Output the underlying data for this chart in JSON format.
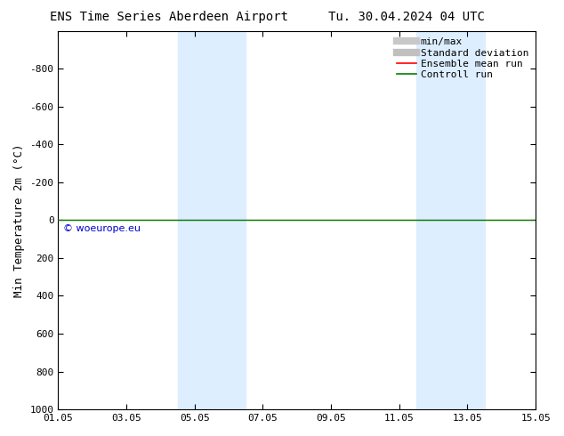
{
  "title": "ENS Time Series Aberdeen Airport",
  "title2": "Tu. 30.04.2024 04 UTC",
  "ylabel": "Min Temperature 2m (°C)",
  "ylim_top": -1000,
  "ylim_bottom": 1000,
  "yticks": [
    -800,
    -600,
    -400,
    -200,
    0,
    200,
    400,
    600,
    800,
    1000
  ],
  "xtick_labels": [
    "01.05",
    "03.05",
    "05.05",
    "07.05",
    "09.05",
    "11.05",
    "13.05",
    "15.05"
  ],
  "xtick_positions": [
    0,
    2,
    4,
    6,
    8,
    10,
    12,
    14
  ],
  "xlim": [
    0,
    14
  ],
  "bg_color": "#ffffff",
  "plot_bg_color": "#ffffff",
  "shade_bands": [
    {
      "start": 3.5,
      "end": 5.5,
      "color": "#ddeeff"
    },
    {
      "start": 10.5,
      "end": 12.5,
      "color": "#ddeeff"
    }
  ],
  "control_run_y": 0.0,
  "control_run_color": "#008000",
  "ensemble_mean_color": "#ff0000",
  "watermark": "© woeurope.eu",
  "watermark_color": "#0000cc",
  "legend_entries": [
    "min/max",
    "Standard deviation",
    "Ensemble mean run",
    "Controll run"
  ],
  "legend_line_colors": [
    "#c8c8c8",
    "#c0c0c0",
    "#ff0000",
    "#008000"
  ],
  "title_fontsize": 10,
  "axis_fontsize": 9,
  "tick_fontsize": 8,
  "legend_fontsize": 8
}
